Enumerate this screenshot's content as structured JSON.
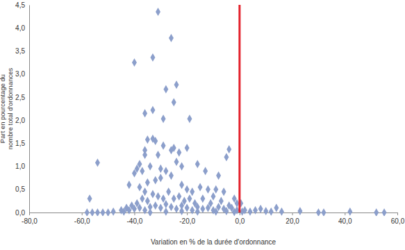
{
  "chart_data": {
    "type": "scatter",
    "xlabel": "Variation en % de la durée d'ordonnance",
    "ylabel": [
      "Part en pourcentage du",
      "nombre total d'ordonnances"
    ],
    "color": "#8c9fcb",
    "marker": "diamond",
    "grid": false,
    "xlim": [
      -80,
      60
    ],
    "ylim": [
      0,
      4.5
    ],
    "xticks": [
      {
        "value": -80,
        "label": "-80,0"
      },
      {
        "value": -60,
        "label": "-60,0"
      },
      {
        "value": -40,
        "label": "-40,0"
      },
      {
        "value": -20,
        "label": "-20,0"
      },
      {
        "value": 0,
        "label": "0,0"
      },
      {
        "value": 20,
        "label": "20,0"
      },
      {
        "value": 40,
        "label": "40,0"
      },
      {
        "value": 60,
        "label": "60,0"
      }
    ],
    "yticks": [
      {
        "value": 0,
        "label": "0,0"
      },
      {
        "value": 0.5,
        "label": "0,5"
      },
      {
        "value": 1,
        "label": "1,0"
      },
      {
        "value": 1.5,
        "label": "1,5"
      },
      {
        "value": 2,
        "label": "2,0"
      },
      {
        "value": 2.5,
        "label": "2,5"
      },
      {
        "value": 3,
        "label": "3,0"
      },
      {
        "value": 3.5,
        "label": "3,5"
      },
      {
        "value": 4,
        "label": "4,0"
      },
      {
        "value": 4.5,
        "label": "4,5"
      }
    ],
    "vline": {
      "x": 0,
      "color": "#e3202a"
    },
    "x": [
      -31,
      -26,
      -40,
      -33,
      -28,
      -24,
      -25,
      -36,
      -33,
      -29,
      -19,
      -35,
      -33,
      -32,
      -25,
      -26,
      -23,
      -36,
      -36,
      -38,
      -31,
      -29,
      -20,
      -4,
      -5,
      -54,
      -39,
      -37,
      -40,
      -34,
      -30,
      -28,
      -24,
      -22,
      -16,
      -13,
      -8,
      -42,
      -38,
      -36,
      -35,
      -32,
      -30,
      -26,
      -22,
      -20,
      -18,
      -15,
      -12,
      -9,
      -6,
      -2,
      -1,
      0.5,
      -57,
      -58,
      -56,
      -54,
      -52,
      -50,
      -48,
      -45,
      -43,
      -41,
      -39,
      -37,
      -35,
      -33,
      -31,
      -29,
      -27,
      -25,
      -23,
      -21,
      -19,
      -17,
      -14,
      -11,
      -10,
      -7,
      -4,
      -3,
      -44,
      -42,
      -40,
      -38,
      -36,
      -34,
      -32,
      -30,
      -28,
      -26,
      -24,
      -22,
      -20,
      -18,
      -16,
      -14,
      -12,
      -10,
      -8,
      -6,
      -5,
      -1,
      -34,
      -28,
      -22,
      -16,
      -9,
      -2,
      1,
      2,
      4,
      6,
      8,
      10,
      12,
      14,
      16,
      23,
      30,
      32,
      42,
      52,
      55
    ],
    "values": [
      4.35,
      3.78,
      3.25,
      3.36,
      2.67,
      2.77,
      2.39,
      2.15,
      2.22,
      2.03,
      2.03,
      1.58,
      1.6,
      1.55,
      1.4,
      1.35,
      1.3,
      1.35,
      1.25,
      1.05,
      1.25,
      1.45,
      1.4,
      1.37,
      1.2,
      1.08,
      0.95,
      0.9,
      0.85,
      1.0,
      0.95,
      0.9,
      1.1,
      1.0,
      1.05,
      0.9,
      0.8,
      0.6,
      0.55,
      0.45,
      0.65,
      0.7,
      0.75,
      0.8,
      0.6,
      0.5,
      0.45,
      0.55,
      0.5,
      0.5,
      0.45,
      0.3,
      0.2,
      0.2,
      0.3,
      0,
      0,
      0,
      0,
      0,
      0.02,
      0.05,
      0.1,
      0.15,
      0.2,
      0.3,
      0.25,
      0.4,
      0.35,
      0.3,
      0.45,
      0.3,
      0.35,
      0.25,
      0.3,
      0.2,
      0.3,
      0.2,
      0.35,
      0.25,
      0.15,
      0.1,
      0.02,
      0.05,
      0.08,
      0.1,
      0.05,
      0.12,
      0.15,
      0.1,
      0.18,
      0.12,
      0.08,
      0.15,
      0.1,
      0.05,
      0.12,
      0.08,
      0.1,
      0.05,
      0.12,
      0.08,
      0.03,
      0.05,
      0,
      0.02,
      0.03,
      0.02,
      0.02,
      0.01,
      0.02,
      0.05,
      0.02,
      0.05,
      0.08,
      0.03,
      0.02,
      0.1,
      0.02,
      0.03,
      0,
      0,
      0.02,
      0,
      0
    ]
  }
}
